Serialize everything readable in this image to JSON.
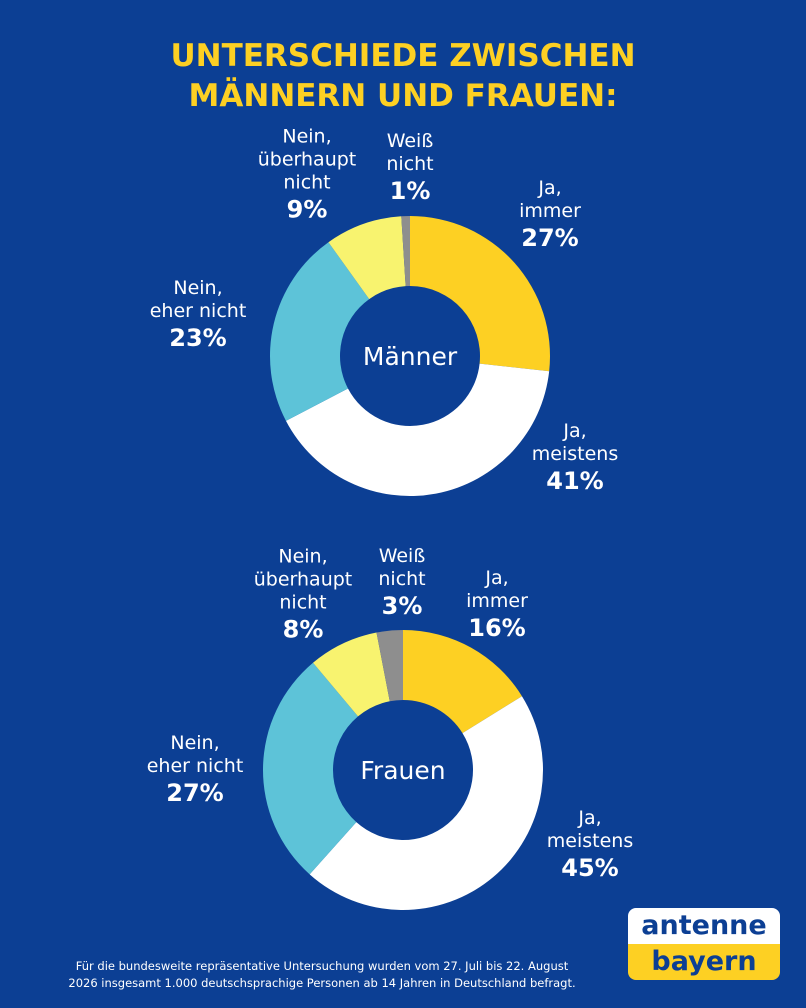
{
  "title": [
    "UNTERSCHIEDE ZWISCHEN",
    "MÄNNERN UND FRAUEN:"
  ],
  "chart_data": [
    {
      "type": "donut",
      "center_label": "Männer",
      "categories": [
        "Ja,\nimmer",
        "Ja,\nmeistens",
        "Nein,\neher nicht",
        "Nein,\nüberhaupt\nnicht",
        "Weiß\nnicht"
      ],
      "values": [
        27,
        41,
        23,
        9,
        1
      ],
      "value_labels": [
        "27%",
        "41%",
        "23%",
        "9%",
        "1%"
      ],
      "colors": [
        "#fdd023",
        "#ffffff",
        "#5dc3d8",
        "#f8f36f",
        "#8e8e8e"
      ]
    },
    {
      "type": "donut",
      "center_label": "Frauen",
      "categories": [
        "Ja,\nimmer",
        "Ja,\nmeistens",
        "Nein,\neher nicht",
        "Nein,\nüberhaupt\nnicht",
        "Weiß\nnicht"
      ],
      "values": [
        16,
        45,
        27,
        8,
        3
      ],
      "value_labels": [
        "16%",
        "45%",
        "27%",
        "8%",
        "3%"
      ],
      "colors": [
        "#fdd023",
        "#ffffff",
        "#5dc3d8",
        "#f8f36f",
        "#8e8e8e"
      ]
    }
  ],
  "footnote": "Für die bundesweite repräsentative Untersuchung wurden vom 27. Juli bis 22. August\n2026 insgesamt 1.000 deutschsprachige Personen ab 14 Jahren in Deutschland befragt.",
  "logo": [
    "antenne",
    "bayern"
  ]
}
